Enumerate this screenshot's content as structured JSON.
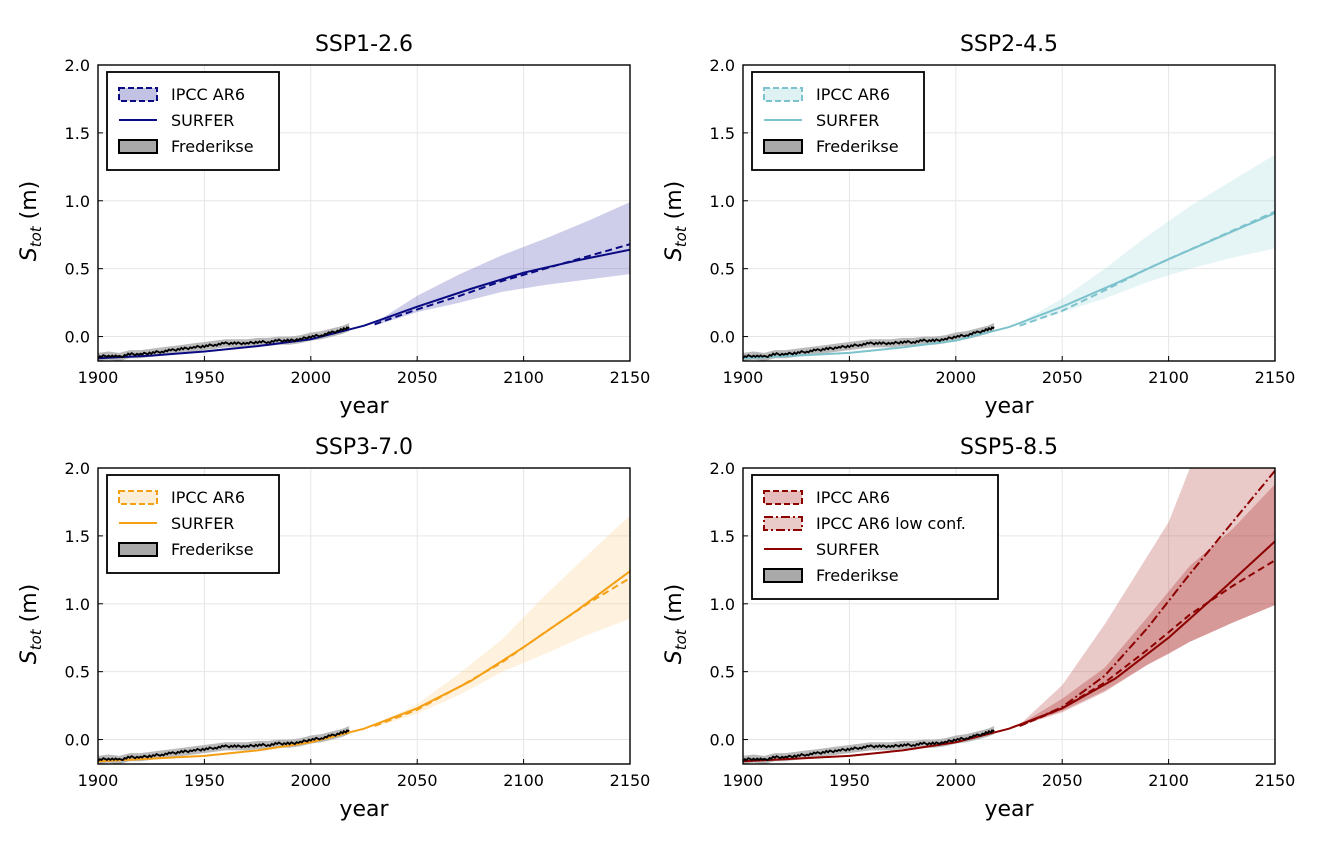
{
  "chart_data": [
    {
      "type": "line",
      "title": "SSP1-2.6",
      "xlabel": "year",
      "ylabel_main": "S",
      "ylabel_sub": "tot",
      "ylabel_unit": " (m)",
      "xlim": [
        1900,
        2150
      ],
      "ylim": [
        -0.18,
        2.0
      ],
      "xticks": [
        "1900",
        "1950",
        "2000",
        "2050",
        "2100",
        "2150"
      ],
      "yticks": [
        "0.0",
        "0.5",
        "1.0",
        "1.5",
        "2.0"
      ],
      "color": "#0a0a82",
      "band_color": "#5050b4",
      "legend": [
        "IPCC AR6",
        "SURFER",
        "Frederikse"
      ],
      "ipcc_band": {
        "x": [
          2030,
          2050,
          2070,
          2090,
          2110,
          2130,
          2150
        ],
        "lo": [
          0.08,
          0.18,
          0.25,
          0.33,
          0.38,
          0.42,
          0.46
        ],
        "hi": [
          0.1,
          0.3,
          0.46,
          0.6,
          0.72,
          0.85,
          0.99
        ]
      },
      "ipcc_median": {
        "x": [
          2030,
          2050,
          2070,
          2090,
          2110,
          2130,
          2150
        ],
        "y": [
          0.09,
          0.2,
          0.3,
          0.41,
          0.5,
          0.59,
          0.68
        ]
      },
      "surfer": {
        "x": [
          1900,
          1925,
          1950,
          1975,
          2000,
          2025,
          2050,
          2075,
          2100,
          2125,
          2150
        ],
        "y": [
          -0.16,
          -0.14,
          -0.11,
          -0.07,
          -0.02,
          0.08,
          0.22,
          0.35,
          0.47,
          0.56,
          0.64
        ]
      },
      "frederikse": {
        "x": [
          1900,
          1905,
          1910,
          1915,
          1920,
          1925,
          1930,
          1935,
          1940,
          1945,
          1950,
          1955,
          1960,
          1965,
          1970,
          1975,
          1980,
          1985,
          1990,
          1995,
          2000,
          2005,
          2010,
          2015,
          2018
        ],
        "y": [
          -0.15,
          -0.14,
          -0.15,
          -0.13,
          -0.13,
          -0.12,
          -0.11,
          -0.1,
          -0.09,
          -0.08,
          -0.07,
          -0.06,
          -0.05,
          -0.05,
          -0.05,
          -0.04,
          -0.04,
          -0.03,
          -0.03,
          -0.02,
          0.0,
          0.01,
          0.03,
          0.05,
          0.07
        ],
        "unc": 0.03
      }
    },
    {
      "type": "line",
      "title": "SSP2-4.5",
      "xlabel": "year",
      "ylabel_main": "S",
      "ylabel_sub": "tot",
      "ylabel_unit": " (m)",
      "xlim": [
        1900,
        2150
      ],
      "ylim": [
        -0.18,
        2.0
      ],
      "xticks": [
        "1900",
        "1950",
        "2000",
        "2050",
        "2100",
        "2150"
      ],
      "yticks": [
        "0.0",
        "0.5",
        "1.0",
        "1.5",
        "2.0"
      ],
      "color": "#7dc3cd",
      "band_color": "#a0d7dc",
      "legend": [
        "IPCC AR6",
        "SURFER",
        "Frederikse"
      ],
      "ipcc_band": {
        "x": [
          2030,
          2050,
          2070,
          2090,
          2110,
          2130,
          2150
        ],
        "lo": [
          0.08,
          0.18,
          0.28,
          0.4,
          0.5,
          0.58,
          0.65
        ],
        "hi": [
          0.1,
          0.28,
          0.5,
          0.74,
          0.96,
          1.15,
          1.34
        ]
      },
      "ipcc_median": {
        "x": [
          2030,
          2050,
          2070,
          2090,
          2110,
          2130,
          2150
        ],
        "y": [
          0.08,
          0.19,
          0.34,
          0.5,
          0.64,
          0.78,
          0.92
        ]
      },
      "surfer": {
        "x": [
          1900,
          1925,
          1950,
          1975,
          2000,
          2025,
          2050,
          2075,
          2100,
          2125,
          2150
        ],
        "y": [
          -0.16,
          -0.14,
          -0.12,
          -0.08,
          -0.03,
          0.07,
          0.22,
          0.39,
          0.57,
          0.74,
          0.91
        ]
      },
      "frederikse": {
        "x": [
          1900,
          1905,
          1910,
          1915,
          1920,
          1925,
          1930,
          1935,
          1940,
          1945,
          1950,
          1955,
          1960,
          1965,
          1970,
          1975,
          1980,
          1985,
          1990,
          1995,
          2000,
          2005,
          2010,
          2015,
          2018
        ],
        "y": [
          -0.15,
          -0.14,
          -0.15,
          -0.13,
          -0.13,
          -0.12,
          -0.11,
          -0.1,
          -0.09,
          -0.08,
          -0.07,
          -0.06,
          -0.05,
          -0.05,
          -0.05,
          -0.04,
          -0.04,
          -0.03,
          -0.03,
          -0.02,
          0.0,
          0.01,
          0.03,
          0.05,
          0.07
        ],
        "unc": 0.03
      }
    },
    {
      "type": "line",
      "title": "SSP3-7.0",
      "xlabel": "year",
      "ylabel_main": "S",
      "ylabel_sub": "tot",
      "ylabel_unit": " (m)",
      "xlim": [
        1900,
        2150
      ],
      "ylim": [
        -0.18,
        2.0
      ],
      "xticks": [
        "1900",
        "1950",
        "2000",
        "2050",
        "2100",
        "2150"
      ],
      "yticks": [
        "0.0",
        "0.5",
        "1.0",
        "1.5",
        "2.0"
      ],
      "color": "#f5a014",
      "band_color": "#fad28c",
      "legend": [
        "IPCC AR6",
        "SURFER",
        "Frederikse"
      ],
      "ipcc_band": {
        "x": [
          2030,
          2050,
          2070,
          2090,
          2110,
          2130,
          2150
        ],
        "lo": [
          0.09,
          0.19,
          0.33,
          0.5,
          0.63,
          0.77,
          0.89
        ],
        "hi": [
          0.11,
          0.26,
          0.49,
          0.74,
          1.06,
          1.36,
          1.65
        ]
      },
      "ipcc_median": {
        "x": [
          2030,
          2050,
          2070,
          2090,
          2110,
          2130,
          2150
        ],
        "y": [
          0.1,
          0.22,
          0.39,
          0.57,
          0.79,
          1.0,
          1.19
        ]
      },
      "surfer": {
        "x": [
          1900,
          1925,
          1950,
          1975,
          2000,
          2025,
          2050,
          2075,
          2100,
          2125,
          2150
        ],
        "y": [
          -0.16,
          -0.14,
          -0.12,
          -0.08,
          -0.02,
          0.08,
          0.23,
          0.43,
          0.68,
          0.95,
          1.24
        ]
      },
      "frederikse": {
        "x": [
          1900,
          1905,
          1910,
          1915,
          1920,
          1925,
          1930,
          1935,
          1940,
          1945,
          1950,
          1955,
          1960,
          1965,
          1970,
          1975,
          1980,
          1985,
          1990,
          1995,
          2000,
          2005,
          2010,
          2015,
          2018
        ],
        "y": [
          -0.15,
          -0.14,
          -0.15,
          -0.13,
          -0.13,
          -0.12,
          -0.11,
          -0.1,
          -0.09,
          -0.08,
          -0.07,
          -0.06,
          -0.05,
          -0.05,
          -0.05,
          -0.04,
          -0.04,
          -0.03,
          -0.03,
          -0.02,
          0.0,
          0.01,
          0.03,
          0.05,
          0.07
        ],
        "unc": 0.03
      }
    },
    {
      "type": "line",
      "title": "SSP5-8.5",
      "xlabel": "year",
      "ylabel_main": "S",
      "ylabel_sub": "tot",
      "ylabel_unit": " (m)",
      "xlim": [
        1900,
        2150
      ],
      "ylim": [
        -0.18,
        2.0
      ],
      "xticks": [
        "1900",
        "1950",
        "2000",
        "2050",
        "2100",
        "2150"
      ],
      "yticks": [
        "0.0",
        "0.5",
        "1.0",
        "1.5",
        "2.0"
      ],
      "color": "#8c0000",
      "band_color": "#b43c3c",
      "legend": [
        "IPCC AR6",
        "IPCC AR6 low conf.",
        "SURFER",
        "Frederikse"
      ],
      "low_conf_band": {
        "x": [
          2030,
          2050,
          2070,
          2090,
          2100,
          2110,
          2130,
          2150
        ],
        "lo": [
          0.1,
          0.2,
          0.35,
          0.55,
          0.63,
          0.72,
          0.86,
          0.99
        ],
        "hi": [
          0.11,
          0.4,
          0.85,
          1.35,
          1.6,
          2.0,
          2.0,
          2.0
        ]
      },
      "low_conf_median": {
        "x": [
          2030,
          2050,
          2070,
          2090,
          2110,
          2130,
          2150
        ],
        "y": [
          0.1,
          0.24,
          0.47,
          0.82,
          1.22,
          1.6,
          1.98
        ]
      },
      "ipcc_band": {
        "x": [
          2030,
          2050,
          2070,
          2090,
          2110,
          2130,
          2150
        ],
        "lo": [
          0.1,
          0.21,
          0.36,
          0.55,
          0.72,
          0.86,
          0.99
        ],
        "hi": [
          0.11,
          0.3,
          0.53,
          0.9,
          1.28,
          1.55,
          1.88
        ]
      },
      "ipcc_median": {
        "x": [
          2030,
          2050,
          2070,
          2090,
          2110,
          2130,
          2150
        ],
        "y": [
          0.1,
          0.23,
          0.42,
          0.66,
          0.92,
          1.13,
          1.32
        ]
      },
      "surfer": {
        "x": [
          1900,
          1925,
          1950,
          1975,
          2000,
          2025,
          2050,
          2075,
          2100,
          2125,
          2150
        ],
        "y": [
          -0.16,
          -0.14,
          -0.12,
          -0.08,
          -0.02,
          0.08,
          0.23,
          0.45,
          0.75,
          1.1,
          1.46
        ]
      },
      "frederikse": {
        "x": [
          1900,
          1905,
          1910,
          1915,
          1920,
          1925,
          1930,
          1935,
          1940,
          1945,
          1950,
          1955,
          1960,
          1965,
          1970,
          1975,
          1980,
          1985,
          1990,
          1995,
          2000,
          2005,
          2010,
          2015,
          2018
        ],
        "y": [
          -0.15,
          -0.14,
          -0.15,
          -0.13,
          -0.13,
          -0.12,
          -0.11,
          -0.1,
          -0.09,
          -0.08,
          -0.07,
          -0.06,
          -0.05,
          -0.05,
          -0.05,
          -0.04,
          -0.04,
          -0.03,
          -0.03,
          -0.02,
          0.0,
          0.01,
          0.03,
          0.05,
          0.07
        ],
        "unc": 0.03
      }
    }
  ]
}
